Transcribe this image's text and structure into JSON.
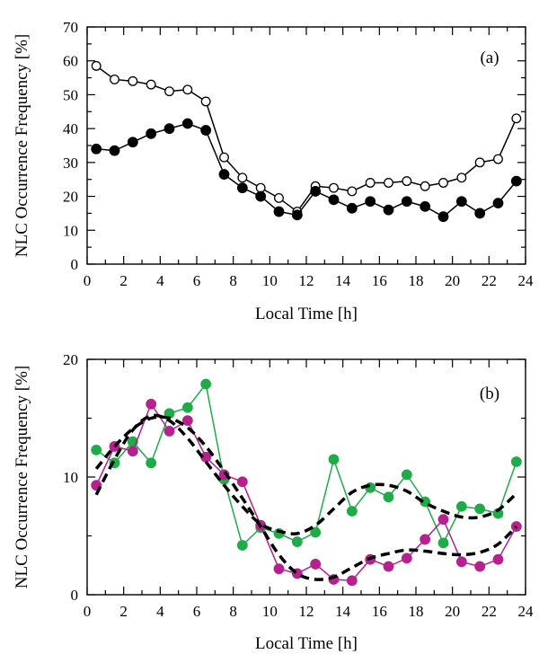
{
  "chart_data": [
    {
      "type": "line",
      "panel_label": "(a)",
      "xlabel": "Local Time [h]",
      "ylabel": "NLC Occurrence Frequency [%]",
      "xlim": [
        0,
        24
      ],
      "ylim": [
        0,
        70
      ],
      "xticks": [
        0,
        2,
        4,
        6,
        8,
        10,
        12,
        14,
        16,
        18,
        20,
        22,
        24
      ],
      "yticks": [
        0,
        10,
        20,
        30,
        40,
        50,
        60,
        70
      ],
      "grid": false,
      "x": [
        0.5,
        1.5,
        2.5,
        3.5,
        4.5,
        5.5,
        6.5,
        7.5,
        8.5,
        9.5,
        10.5,
        11.5,
        12.5,
        13.5,
        14.5,
        15.5,
        16.5,
        17.5,
        18.5,
        19.5,
        20.5,
        21.5,
        22.5,
        23.5
      ],
      "series": [
        {
          "marker": "open-circle",
          "color": "#000000",
          "values": [
            58.5,
            54.5,
            54,
            53,
            51,
            51.5,
            48,
            31.5,
            25.5,
            22.5,
            19.5,
            15.5,
            23,
            22.5,
            21.5,
            24,
            24,
            24.5,
            23,
            24,
            25.5,
            30,
            31,
            43
          ]
        },
        {
          "marker": "filled-circle",
          "color": "#000000",
          "values": [
            34,
            33.5,
            36,
            38.5,
            40,
            41.5,
            39.5,
            26.5,
            22.5,
            20,
            15.5,
            14.5,
            21.5,
            19,
            16.5,
            18.5,
            16,
            18.5,
            17,
            14,
            18.5,
            15,
            18,
            24.5
          ]
        }
      ]
    },
    {
      "type": "line",
      "panel_label": "(b)",
      "xlabel": "Local Time [h]",
      "ylabel": "NLC Occurrence Frequency [%]",
      "xlim": [
        0,
        24
      ],
      "ylim": [
        0,
        20
      ],
      "xticks": [
        0,
        2,
        4,
        6,
        8,
        10,
        12,
        14,
        16,
        18,
        20,
        22,
        24
      ],
      "yticks": [
        0,
        10,
        20
      ],
      "grid": false,
      "x": [
        0.5,
        1.5,
        2.5,
        3.5,
        4.5,
        5.5,
        6.5,
        7.5,
        8.5,
        9.5,
        10.5,
        11.5,
        12.5,
        13.5,
        14.5,
        15.5,
        16.5,
        17.5,
        18.5,
        19.5,
        20.5,
        21.5,
        22.5,
        23.5
      ],
      "series": [
        {
          "marker": "filled-circle",
          "color": "#1fab48",
          "values": [
            12.3,
            11.2,
            13,
            11.2,
            15.4,
            15.9,
            17.9,
            9.8,
            4.2,
            5.7,
            5.2,
            4.5,
            5.3,
            11.5,
            7.1,
            9.1,
            8.3,
            10.2,
            7.9,
            4.4,
            7.5,
            7.3,
            6.9,
            11.3
          ]
        },
        {
          "marker": "filled-circle",
          "color": "#b5218e",
          "values": [
            9.3,
            12.6,
            12.2,
            16.2,
            13.9,
            14.8,
            11.7,
            10.2,
            9.6,
            5.9,
            2.2,
            1.8,
            2.6,
            1.3,
            1.2,
            3,
            2.4,
            3.1,
            4.7,
            6.4,
            2.8,
            2.4,
            3,
            5.8
          ]
        },
        {
          "style": "dashed-fit",
          "color": "#000000",
          "values": [
            8.5,
            11.5,
            14,
            15.2,
            14.8,
            13.3,
            11.3,
            9.3,
            7.5,
            6,
            5.4,
            5.2,
            5.9,
            7.3,
            8.7,
            9.3,
            9.3,
            8.8,
            7.8,
            7.1,
            6.6,
            6.6,
            7.2,
            8.6
          ]
        },
        {
          "style": "dashed-fit",
          "color": "#000000",
          "values": [
            10.7,
            12.6,
            14.1,
            15,
            15,
            14.2,
            12.6,
            10.5,
            8.2,
            5.8,
            3.4,
            1.8,
            1.3,
            1.5,
            2.3,
            3.1,
            3.5,
            3.8,
            3.7,
            3.5,
            3.4,
            3.6,
            4.3,
            5.8
          ]
        }
      ]
    }
  ]
}
